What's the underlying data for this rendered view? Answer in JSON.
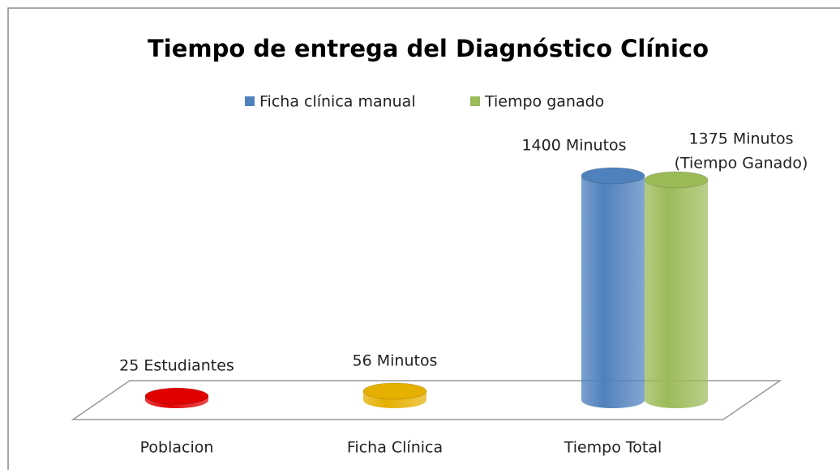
{
  "chart_data": {
    "type": "bar3d",
    "title": "Tiempo de entrega del Diagnóstico Clínico",
    "categories": [
      "Poblacion",
      "Ficha Clínica",
      "Tiempo Total"
    ],
    "series": [
      {
        "name": "Ficha clínica manual",
        "color": "#4f81bd",
        "point_colors": [
          "#e00000",
          "#e6b000",
          "#4f81bd"
        ],
        "values": [
          25,
          56,
          1400
        ],
        "value_labels": [
          "25 Estudiantes",
          "56 Minutos",
          "1400 Minutos"
        ]
      },
      {
        "name": "Tiempo ganado",
        "color": "#9bbb59",
        "values": [
          null,
          null,
          1375
        ],
        "value_labels": [
          null,
          null,
          [
            "1375  Minutos",
            "(Tiempo Ganado)"
          ]
        ]
      }
    ]
  }
}
